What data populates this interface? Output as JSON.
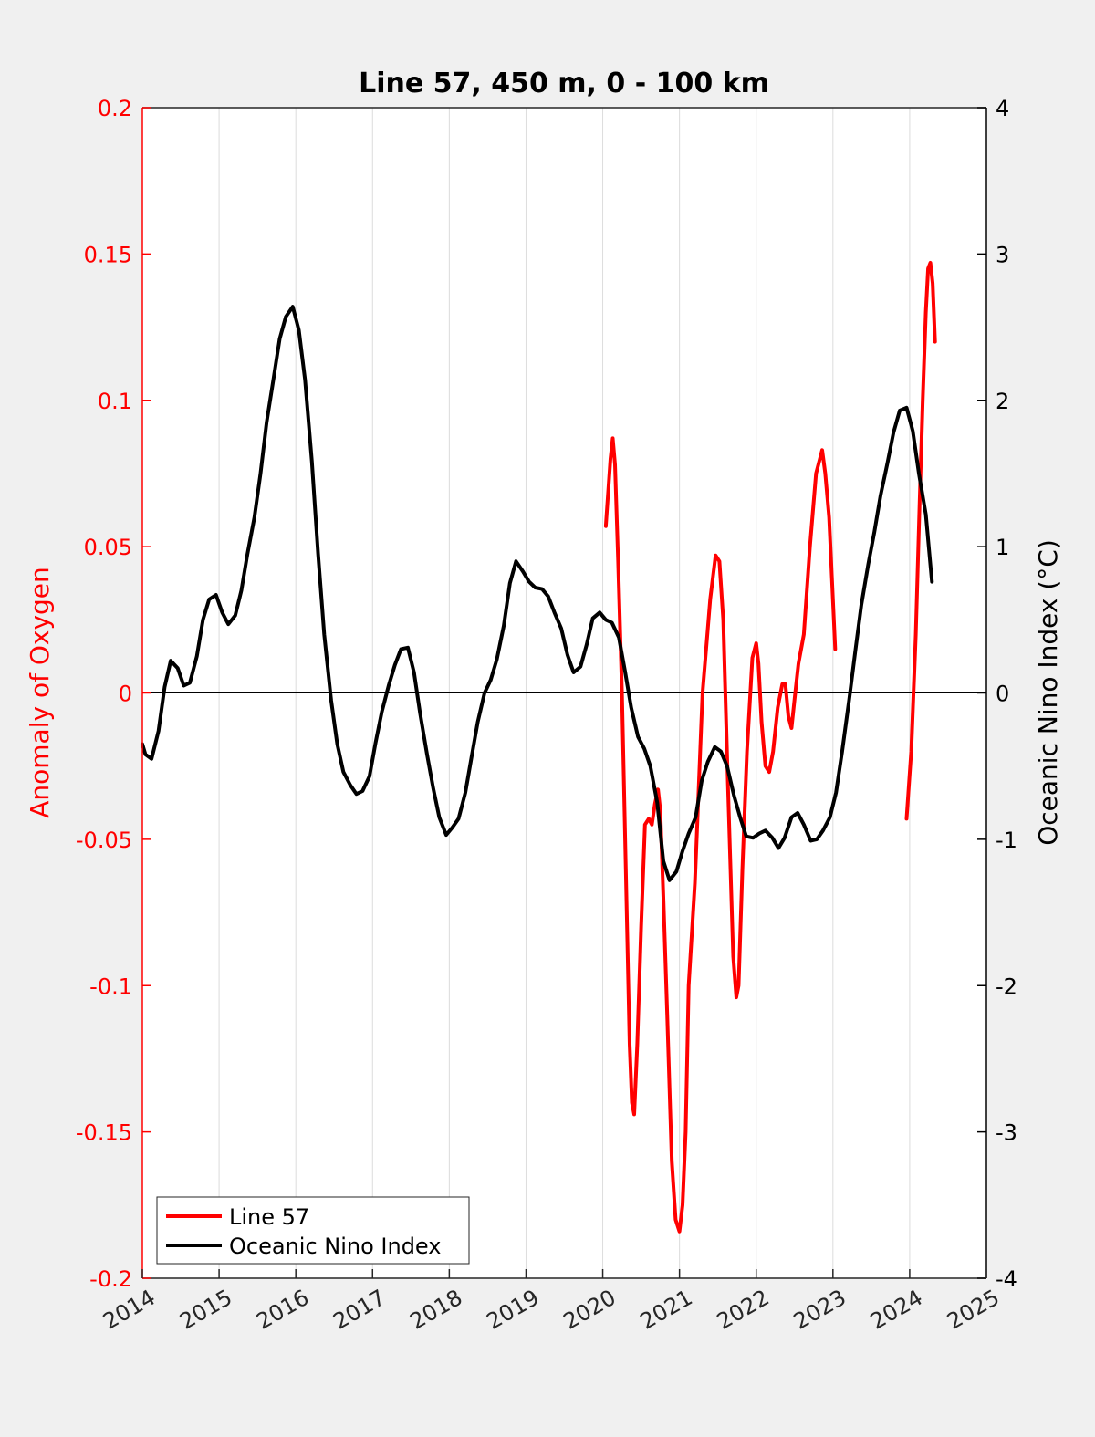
{
  "chart_data": {
    "type": "line",
    "title": "Line 57, 450 m, 0 - 100 km",
    "ylabel_left": "Anomaly of Oxygen",
    "ylabel_right": "Oceanic Nino Index (°C)",
    "xlim": [
      2014,
      2025
    ],
    "ylim_left": [
      -0.2,
      0.2
    ],
    "ylim_right": [
      -4,
      4
    ],
    "x_ticks": [
      "2014",
      "2015",
      "2016",
      "2017",
      "2018",
      "2019",
      "2020",
      "2021",
      "2022",
      "2023",
      "2024",
      "2025"
    ],
    "y_ticks_left": [
      "-0.2",
      "-0.15",
      "-0.1",
      "-0.05",
      "0",
      "0.05",
      "0.1",
      "0.15",
      "0.2"
    ],
    "y_ticks_right": [
      "-4",
      "-3",
      "-2",
      "-1",
      "0",
      "1",
      "2",
      "3",
      "4"
    ],
    "grid": "vertical",
    "legend_position": "bottom-left",
    "colors": {
      "line57": "#ff0000",
      "oni": "#000000",
      "left_axis": "#ff0000"
    },
    "series": [
      {
        "name": "Line 57",
        "axis": "left",
        "segments": [
          {
            "x": [
              2020.04,
              2020.1,
              2020.13,
              2020.16,
              2020.2,
              2020.25,
              2020.3,
              2020.35,
              2020.38,
              2020.41,
              2020.45,
              2020.5,
              2020.55,
              2020.6,
              2020.64,
              2020.68,
              2020.72,
              2020.75,
              2020.79,
              2020.84,
              2020.9,
              2020.95,
              2021.0,
              2021.04,
              2021.08,
              2021.12,
              2021.2,
              2021.3,
              2021.4,
              2021.47,
              2021.52,
              2021.57,
              2021.63,
              2021.7,
              2021.74,
              2021.77,
              2021.82,
              2021.88,
              2021.95,
              2022.0,
              2022.03,
              2022.07,
              2022.12,
              2022.17,
              2022.22,
              2022.28,
              2022.34,
              2022.38,
              2022.42,
              2022.46,
              2022.5,
              2022.55,
              2022.62,
              2022.7,
              2022.78,
              2022.86,
              2022.9,
              2022.95,
              2023.03
            ],
            "y": [
              0.057,
              0.08,
              0.087,
              0.078,
              0.045,
              0.0,
              -0.06,
              -0.12,
              -0.14,
              -0.144,
              -0.12,
              -0.08,
              -0.045,
              -0.043,
              -0.045,
              -0.038,
              -0.033,
              -0.04,
              -0.07,
              -0.11,
              -0.16,
              -0.18,
              -0.184,
              -0.175,
              -0.15,
              -0.1,
              -0.065,
              0.0,
              0.032,
              0.047,
              0.045,
              0.025,
              -0.03,
              -0.09,
              -0.104,
              -0.1,
              -0.06,
              -0.02,
              0.012,
              0.017,
              0.01,
              -0.01,
              -0.025,
              -0.027,
              -0.02,
              -0.005,
              0.003,
              0.003,
              -0.008,
              -0.012,
              -0.002,
              0.01,
              0.02,
              0.05,
              0.075,
              0.083,
              0.075,
              0.06,
              0.015
            ]
          },
          {
            "x": [
              2023.96,
              2024.02,
              2024.08,
              2024.13,
              2024.17,
              2024.21,
              2024.24,
              2024.27,
              2024.3,
              2024.33
            ],
            "y": [
              -0.043,
              -0.02,
              0.02,
              0.065,
              0.1,
              0.13,
              0.145,
              0.147,
              0.14,
              0.12
            ]
          }
        ]
      },
      {
        "name": "Oceanic Nino Index",
        "axis": "right",
        "segments": [
          {
            "x": [
              2014.0,
              2014.04,
              2014.12,
              2014.21,
              2014.29,
              2014.37,
              2014.46,
              2014.54,
              2014.62,
              2014.71,
              2014.79,
              2014.87,
              2014.96,
              2015.04,
              2015.12,
              2015.21,
              2015.29,
              2015.37,
              2015.46,
              2015.54,
              2015.62,
              2015.71,
              2015.79,
              2015.87,
              2015.96,
              2016.04,
              2016.12,
              2016.21,
              2016.29,
              2016.37,
              2016.46,
              2016.54,
              2016.62,
              2016.71,
              2016.79,
              2016.87,
              2016.96,
              2017.04,
              2017.12,
              2017.21,
              2017.29,
              2017.37,
              2017.46,
              2017.54,
              2017.62,
              2017.71,
              2017.79,
              2017.87,
              2017.96,
              2018.04,
              2018.12,
              2018.21,
              2018.29,
              2018.37,
              2018.46,
              2018.54,
              2018.62,
              2018.71,
              2018.79,
              2018.87,
              2018.96,
              2019.04,
              2019.12,
              2019.21,
              2019.29,
              2019.37,
              2019.46,
              2019.54,
              2019.62,
              2019.71,
              2019.79,
              2019.87,
              2019.96,
              2020.04,
              2020.12,
              2020.21,
              2020.29,
              2020.37,
              2020.46,
              2020.54,
              2020.62,
              2020.71,
              2020.79,
              2020.87,
              2020.96,
              2021.04,
              2021.12,
              2021.21,
              2021.29,
              2021.37,
              2021.46,
              2021.54,
              2021.62,
              2021.71,
              2021.79,
              2021.87,
              2021.96,
              2022.04,
              2022.12,
              2022.21,
              2022.29,
              2022.37,
              2022.46,
              2022.54,
              2022.62,
              2022.71,
              2022.79,
              2022.87,
              2022.96,
              2023.04,
              2023.12,
              2023.21,
              2023.29,
              2023.37,
              2023.46,
              2023.54,
              2023.62,
              2023.71,
              2023.79,
              2023.87,
              2023.96,
              2024.04,
              2024.12,
              2024.21,
              2024.29
            ],
            "y": [
              -0.35,
              -0.42,
              -0.45,
              -0.26,
              0.04,
              0.22,
              0.17,
              0.05,
              0.07,
              0.25,
              0.5,
              0.64,
              0.67,
              0.55,
              0.47,
              0.53,
              0.7,
              0.95,
              1.2,
              1.5,
              1.85,
              2.15,
              2.42,
              2.57,
              2.64,
              2.48,
              2.14,
              1.58,
              0.95,
              0.4,
              -0.05,
              -0.35,
              -0.54,
              -0.63,
              -0.69,
              -0.67,
              -0.57,
              -0.34,
              -0.13,
              0.05,
              0.19,
              0.3,
              0.31,
              0.14,
              -0.14,
              -0.42,
              -0.65,
              -0.85,
              -0.97,
              -0.92,
              -0.86,
              -0.68,
              -0.44,
              -0.2,
              0.0,
              0.09,
              0.23,
              0.46,
              0.75,
              0.9,
              0.83,
              0.76,
              0.72,
              0.71,
              0.66,
              0.55,
              0.44,
              0.26,
              0.14,
              0.18,
              0.33,
              0.51,
              0.55,
              0.5,
              0.48,
              0.38,
              0.15,
              -0.1,
              -0.3,
              -0.38,
              -0.5,
              -0.75,
              -1.15,
              -1.28,
              -1.22,
              -1.08,
              -0.96,
              -0.85,
              -0.6,
              -0.47,
              -0.37,
              -0.4,
              -0.5,
              -0.7,
              -0.85,
              -0.98,
              -0.99,
              -0.96,
              -0.94,
              -0.99,
              -1.06,
              -0.99,
              -0.85,
              -0.82,
              -0.9,
              -1.01,
              -1.0,
              -0.94,
              -0.85,
              -0.68,
              -0.4,
              -0.05,
              0.28,
              0.6,
              0.88,
              1.1,
              1.35,
              1.57,
              1.78,
              1.93,
              1.95,
              1.79,
              1.5,
              1.22,
              0.76
            ]
          }
        ]
      }
    ]
  }
}
